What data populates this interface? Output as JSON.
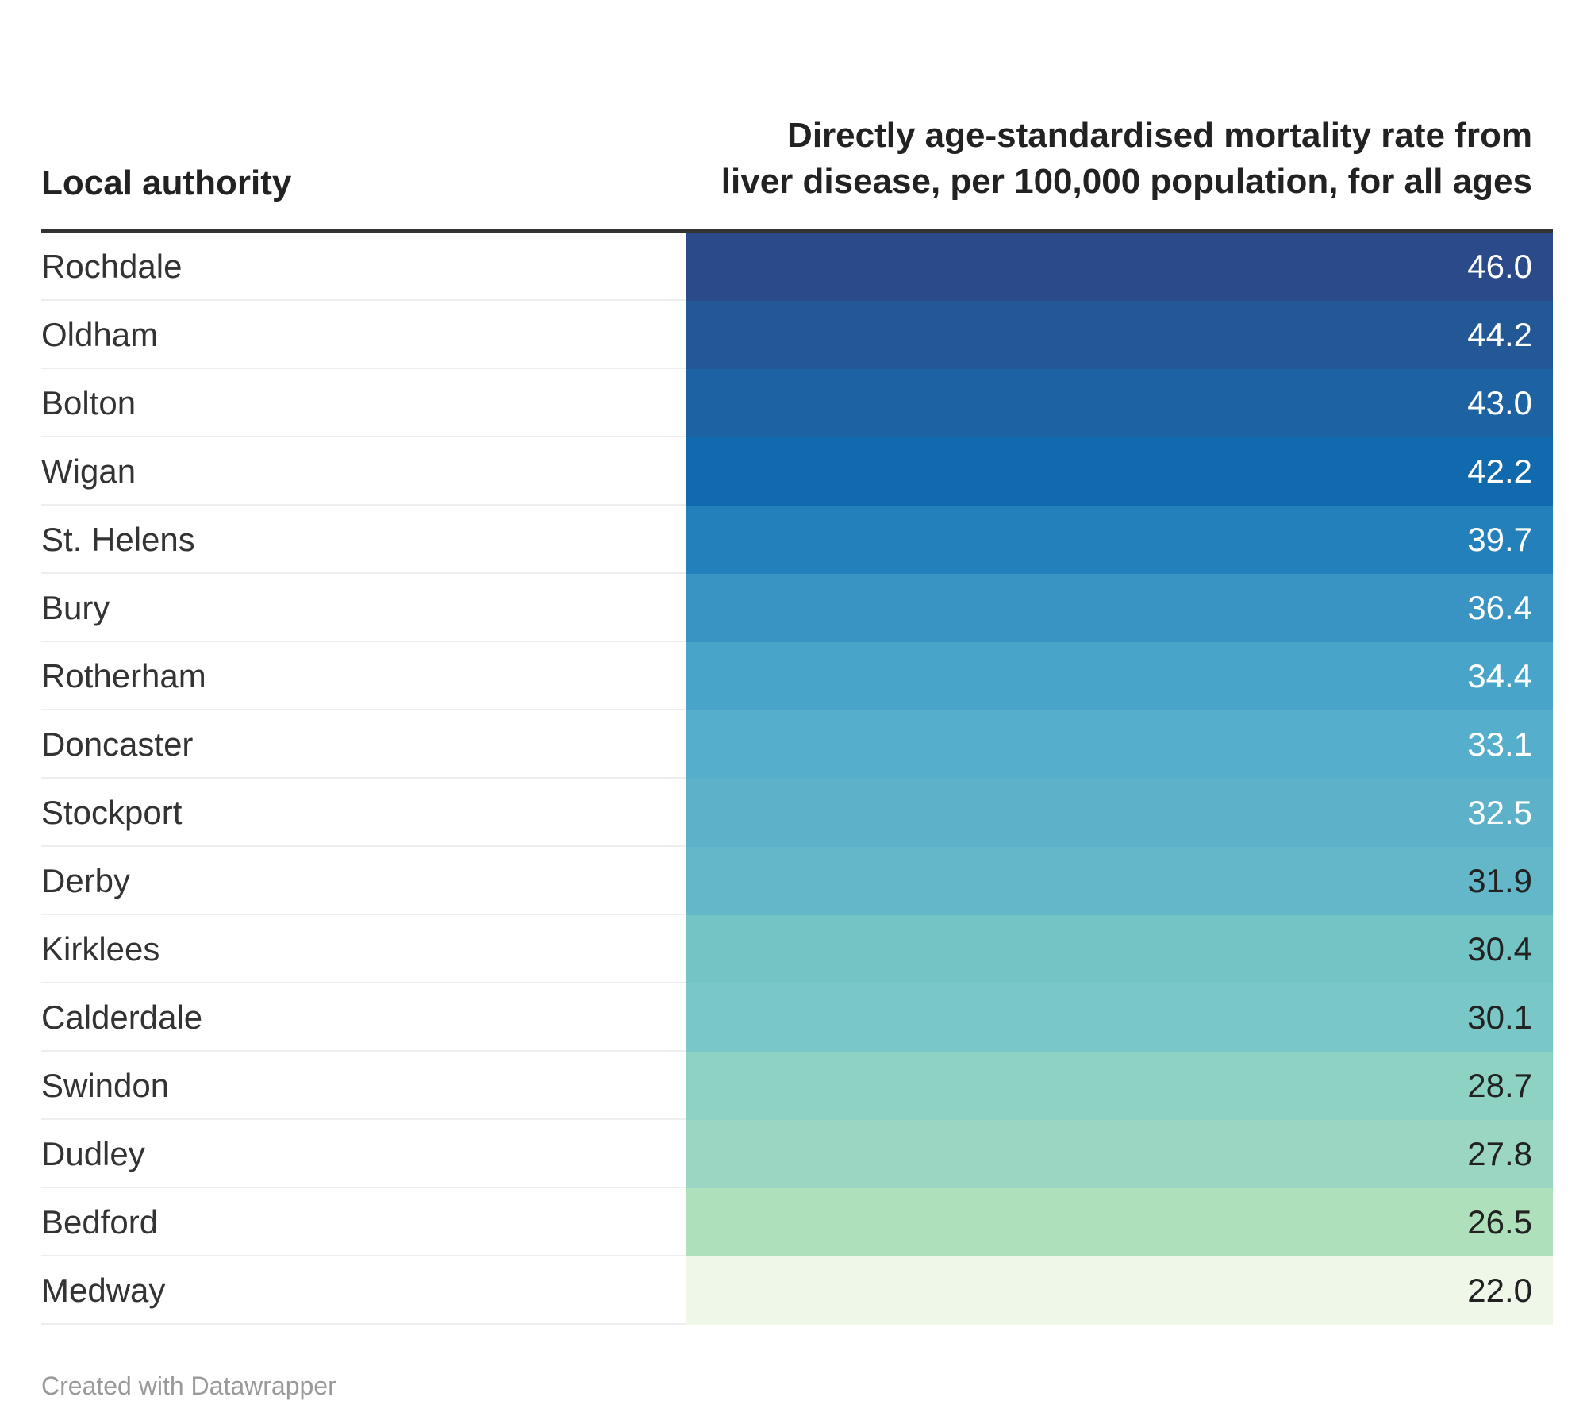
{
  "table": {
    "header_left": "Local authority",
    "header_right": "Directly age-standardised mortality rate from liver disease, per 100,000 population, for all ages"
  },
  "chart_data": {
    "type": "table",
    "columns": [
      "Local authority",
      "Directly age-standardised mortality rate from liver disease, per 100,000 population, for all ages"
    ],
    "rows": [
      {
        "label": "Rochdale",
        "value": "46.0",
        "color": "#2a4a8a",
        "text_color": "#ffffff"
      },
      {
        "label": "Oldham",
        "value": "44.2",
        "color": "#235897",
        "text_color": "#ffffff"
      },
      {
        "label": "Bolton",
        "value": "43.0",
        "color": "#1d62a3",
        "text_color": "#ffffff"
      },
      {
        "label": "Wigan",
        "value": "42.2",
        "color": "#126aae",
        "text_color": "#ffffff"
      },
      {
        "label": "St. Helens",
        "value": "39.7",
        "color": "#2380bb",
        "text_color": "#ffffff"
      },
      {
        "label": "Bury",
        "value": "36.4",
        "color": "#3994c3",
        "text_color": "#ffffff"
      },
      {
        "label": "Rotherham",
        "value": "34.4",
        "color": "#48a5c9",
        "text_color": "#ffffff"
      },
      {
        "label": "Doncaster",
        "value": "33.1",
        "color": "#55aecb",
        "text_color": "#ffffff"
      },
      {
        "label": "Stockport",
        "value": "32.5",
        "color": "#5db2c9",
        "text_color": "#ffffff"
      },
      {
        "label": "Derby",
        "value": "31.9",
        "color": "#63b7c9",
        "text_color": "#222222"
      },
      {
        "label": "Kirklees",
        "value": "30.4",
        "color": "#72c4c5",
        "text_color": "#222222"
      },
      {
        "label": "Calderdale",
        "value": "30.1",
        "color": "#79c7c6",
        "text_color": "#222222"
      },
      {
        "label": "Swindon",
        "value": "28.7",
        "color": "#8ed2c4",
        "text_color": "#222222"
      },
      {
        "label": "Dudley",
        "value": "27.8",
        "color": "#9ad6c2",
        "text_color": "#222222"
      },
      {
        "label": "Bedford",
        "value": "26.5",
        "color": "#afe0bc",
        "text_color": "#222222"
      },
      {
        "label": "Medway",
        "value": "22.0",
        "color": "#eff7e8",
        "text_color": "#222222"
      }
    ]
  },
  "footer": {
    "credit": "Created with Datawrapper"
  }
}
